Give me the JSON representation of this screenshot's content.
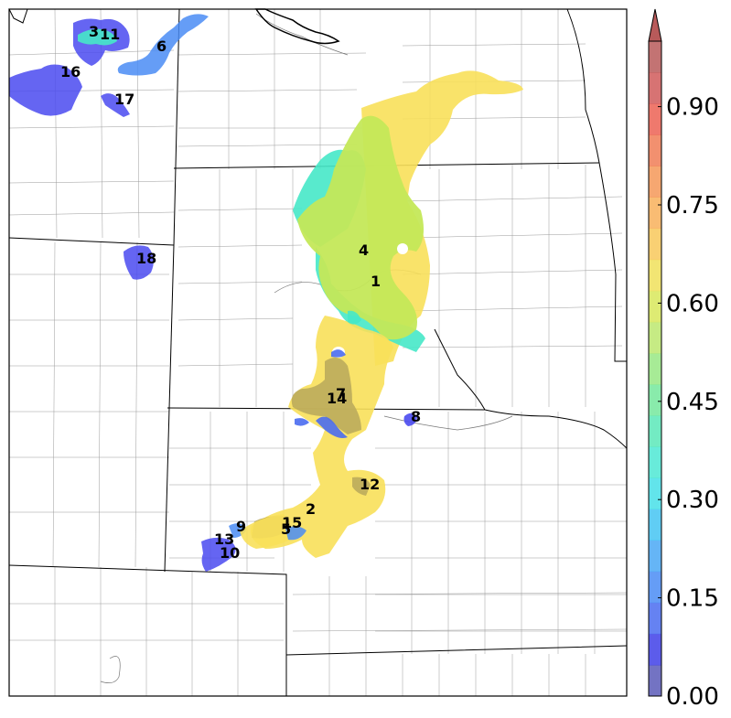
{
  "map": {
    "region_labels": [
      {
        "id": "1",
        "text": "1"
      },
      {
        "id": "2",
        "text": "2"
      },
      {
        "id": "3",
        "text": "3"
      },
      {
        "id": "4",
        "text": "4"
      },
      {
        "id": "5",
        "text": "5"
      },
      {
        "id": "6",
        "text": "6"
      },
      {
        "id": "7",
        "text": "7"
      },
      {
        "id": "8",
        "text": "8"
      },
      {
        "id": "9",
        "text": "9"
      },
      {
        "id": "10",
        "text": "10"
      },
      {
        "id": "11",
        "text": "11"
      },
      {
        "id": "12",
        "text": "12"
      },
      {
        "id": "13",
        "text": "13"
      },
      {
        "id": "14",
        "text": "14"
      },
      {
        "id": "15",
        "text": "15"
      },
      {
        "id": "16",
        "text": "16"
      },
      {
        "id": "17",
        "text": "17"
      },
      {
        "id": "18",
        "text": "18"
      }
    ]
  },
  "colorbar": {
    "min": 0.0,
    "max": 1.0,
    "extend": "max",
    "tick_labels": [
      "0.00",
      "0.15",
      "0.30",
      "0.45",
      "0.60",
      "0.75",
      "0.90"
    ],
    "colors": [
      "#5a5ab8",
      "#3f3fe8",
      "#4a6cf0",
      "#4a8cf5",
      "#4aa8f5",
      "#44c4f2",
      "#46dfe8",
      "#4de8d4",
      "#5ae8b8",
      "#74e89c",
      "#98e884",
      "#bce86e",
      "#d8e85a",
      "#f0e05a",
      "#f8c85a",
      "#f8b05a",
      "#f49858",
      "#f07c56",
      "#ec6254",
      "#d05a5a",
      "#b85a5a"
    ],
    "arrow_color": "#b85a5a"
  }
}
